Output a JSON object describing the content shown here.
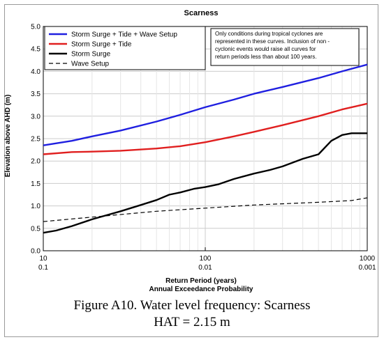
{
  "caption": {
    "line1": "Figure A10.  Water level frequency: Scarness",
    "line2": "HAT = 2.15 m"
  },
  "chart_data": {
    "type": "line",
    "title": "Scarness",
    "xlabel": "Return Period (years)",
    "xlabel2": "Annual Exceedance Probability",
    "ylabel": "Elevation above AHD (m)",
    "xscale": "log",
    "xlim": [
      10,
      1000
    ],
    "ylim": [
      0,
      5
    ],
    "xticks": [
      10,
      100,
      1000
    ],
    "xtick_labels": [
      "10",
      "100",
      "1000"
    ],
    "xtick_labels2": [
      "0.1",
      "0.01",
      "0.001"
    ],
    "yticks": [
      0,
      0.5,
      1,
      1.5,
      2,
      2.5,
      3,
      3.5,
      4,
      4.5,
      5
    ],
    "ytick_labels": [
      "0.0",
      "0.5",
      "1.0",
      "1.5",
      "2.0",
      "2.5",
      "3.0",
      "3.5",
      "4.0",
      "4.5",
      "5.0"
    ],
    "grid": true,
    "legend_position": "top-left",
    "note": [
      "Only conditions during tropical cyclones are",
      "represented in these curves. Inclusion of non -",
      "cyclonic events would raise all curves for",
      "return periods less than about 100 years."
    ],
    "series": [
      {
        "name": "Storm Surge + Tide + Wave Setup",
        "color": "#1f1fe0",
        "dash": "solid",
        "x": [
          10,
          15,
          20,
          30,
          50,
          70,
          100,
          150,
          200,
          300,
          500,
          700,
          1000
        ],
        "y": [
          2.35,
          2.45,
          2.55,
          2.68,
          2.88,
          3.03,
          3.2,
          3.37,
          3.5,
          3.65,
          3.85,
          4.0,
          4.15
        ]
      },
      {
        "name": "Storm Surge + Tide",
        "color": "#e01f1f",
        "dash": "solid",
        "x": [
          10,
          15,
          20,
          30,
          50,
          70,
          100,
          150,
          200,
          300,
          500,
          700,
          1000
        ],
        "y": [
          2.15,
          2.2,
          2.21,
          2.23,
          2.28,
          2.33,
          2.42,
          2.55,
          2.65,
          2.8,
          3.0,
          3.15,
          3.28
        ]
      },
      {
        "name": "Storm Surge",
        "color": "#000000",
        "dash": "solid",
        "x": [
          10,
          12,
          15,
          20,
          25,
          30,
          40,
          50,
          60,
          70,
          85,
          100,
          120,
          150,
          200,
          250,
          300,
          400,
          500,
          600,
          700,
          800,
          1000
        ],
        "y": [
          0.4,
          0.45,
          0.55,
          0.7,
          0.8,
          0.88,
          1.02,
          1.13,
          1.25,
          1.3,
          1.38,
          1.42,
          1.48,
          1.6,
          1.72,
          1.8,
          1.88,
          2.05,
          2.15,
          2.45,
          2.58,
          2.62,
          2.62
        ]
      },
      {
        "name": "Wave Setup",
        "color": "#000000",
        "dash": "dashed",
        "x": [
          10,
          20,
          50,
          100,
          200,
          500,
          800,
          1000
        ],
        "y": [
          0.65,
          0.75,
          0.88,
          0.95,
          1.02,
          1.08,
          1.12,
          1.18
        ]
      }
    ]
  }
}
